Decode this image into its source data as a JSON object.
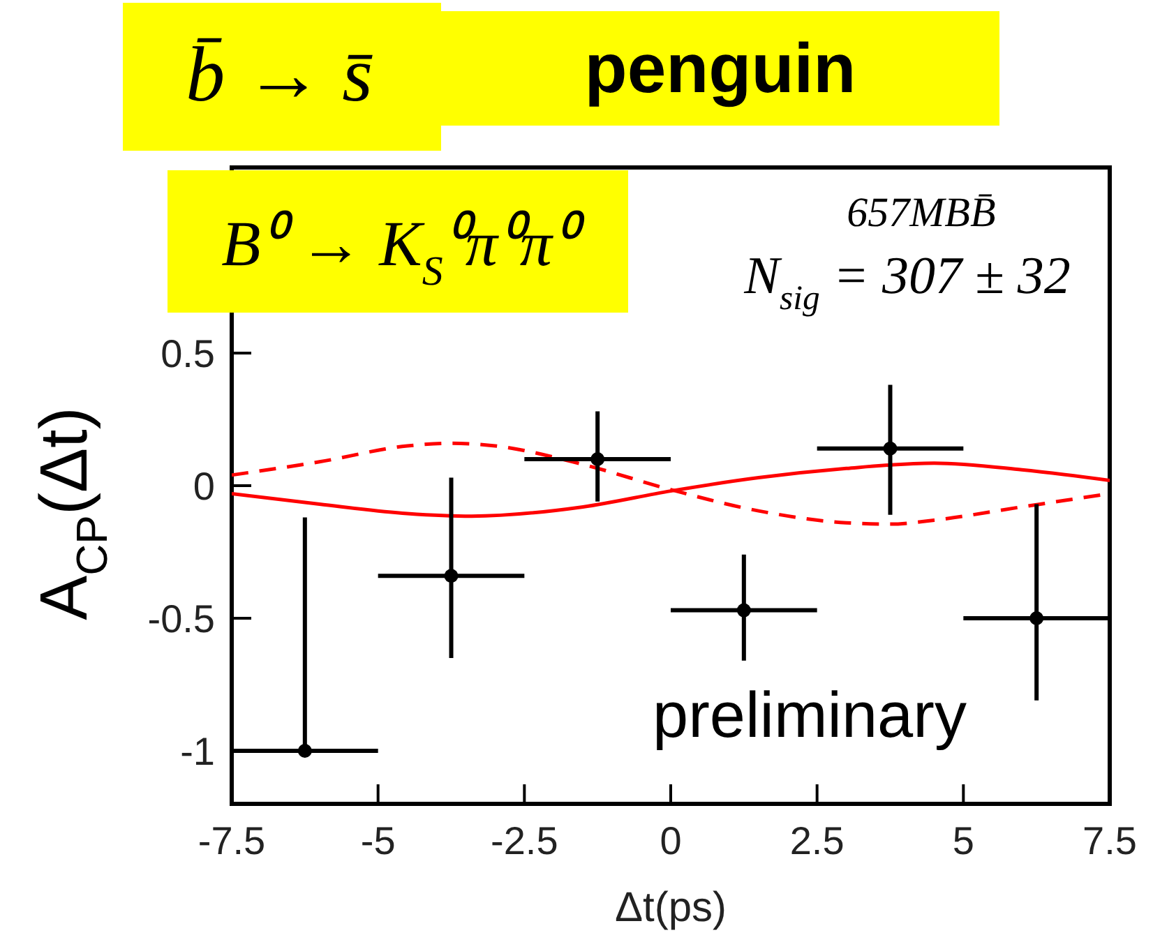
{
  "chart_data": {
    "type": "scatter",
    "title": "b̄ → s̄",
    "subtitle": "penguin",
    "xlabel": "Δt(ps)",
    "ylabel": "A$_{CP}$(Δt)",
    "annotations": [
      "B⁰ → K$_{S}$⁰π⁰π⁰",
      "657MBB̄",
      "N$_{sig}$ = 307 ± 32",
      "preliminary"
    ],
    "xlim": [
      -7.5,
      7.5
    ],
    "ylim": [
      -1.2,
      1.2
    ],
    "xticks": [
      -7.5,
      -5,
      -2.5,
      0,
      2.5,
      5,
      7.5
    ],
    "yticks": [
      -1,
      -0.5,
      0,
      0.5
    ],
    "series": [
      {
        "type": "line",
        "color": "#ff0000",
        "line_style": "solid",
        "x": [
          -7.5,
          -6,
          -4.5,
          -3.4,
          -1.5,
          0,
          1.5,
          3,
          4.5,
          6,
          7.5
        ],
        "values": [
          -0.03,
          -0.07,
          -0.105,
          -0.115,
          -0.08,
          -0.02,
          0.03,
          0.065,
          0.085,
          0.06,
          0.02
        ]
      },
      {
        "type": "line",
        "color": "#ff0000",
        "line_style": "dashed",
        "x": [
          -7.5,
          -6,
          -4.5,
          -3.75,
          -3,
          -1.5,
          0,
          1.5,
          3,
          3.75,
          4.5,
          6,
          7.5
        ],
        "values": [
          0.04,
          0.09,
          0.15,
          0.16,
          0.15,
          0.08,
          -0.015,
          -0.095,
          -0.14,
          -0.145,
          -0.13,
          -0.08,
          -0.03
        ]
      },
      {
        "color": "#000000",
        "marker": "circle",
        "x": [
          -6.25,
          -3.75,
          -1.25,
          1.25,
          3.75,
          6.25
        ],
        "values": [
          -1.0,
          -0.34,
          0.1,
          -0.47,
          0.14,
          -0.5
        ],
        "errors": [
          [
            -1.0,
            -0.12
          ],
          [
            -0.65,
            0.03
          ],
          [
            -0.06,
            0.28
          ],
          [
            -0.66,
            -0.26
          ],
          [
            -0.11,
            0.38
          ],
          [
            -0.81,
            -0.07
          ]
        ],
        "xerrors": [
          1.25,
          1.25,
          1.25,
          1.25,
          1.25,
          1.25
        ]
      }
    ]
  }
}
